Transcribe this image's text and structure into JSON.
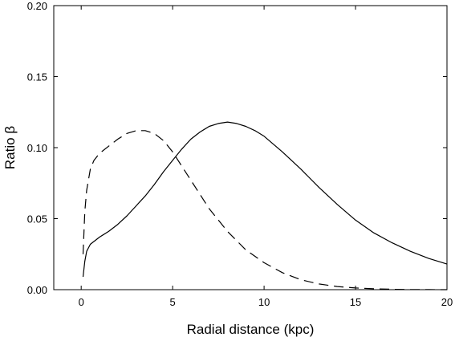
{
  "chart_data": {
    "type": "line",
    "title": "",
    "xlabel": "Radial distance (kpc)",
    "ylabel": "Ratio β",
    "xlim": [
      -1.5,
      20
    ],
    "ylim": [
      0,
      0.2
    ],
    "x_ticks": [
      {
        "value": 0,
        "label": "0"
      },
      {
        "value": 5,
        "label": "5"
      },
      {
        "value": 10,
        "label": "10"
      },
      {
        "value": 15,
        "label": "15"
      },
      {
        "value": 20,
        "label": "20"
      }
    ],
    "y_ticks": [
      {
        "value": 0,
        "label": "0.00"
      },
      {
        "value": 0.05,
        "label": "0.05"
      },
      {
        "value": 0.1,
        "label": "0.10"
      },
      {
        "value": 0.15,
        "label": "0.15"
      },
      {
        "value": 0.2,
        "label": "0.20"
      }
    ],
    "grid": false,
    "series": [
      {
        "style": "solid",
        "color": "#000000",
        "x": [
          0.1,
          0.2,
          0.3,
          0.5,
          0.8,
          1,
          1.5,
          2,
          2.5,
          3,
          3.5,
          4,
          4.5,
          5,
          5.5,
          6,
          6.5,
          7,
          7.5,
          8,
          8.5,
          9,
          9.5,
          10,
          11,
          12,
          13,
          14,
          15,
          16,
          17,
          18,
          19,
          20
        ],
        "y": [
          0.009,
          0.02,
          0.027,
          0.032,
          0.035,
          0.037,
          0.041,
          0.046,
          0.052,
          0.059,
          0.066,
          0.074,
          0.083,
          0.091,
          0.099,
          0.106,
          0.111,
          0.115,
          0.117,
          0.118,
          0.117,
          0.115,
          0.112,
          0.108,
          0.097,
          0.085,
          0.072,
          0.06,
          0.049,
          0.04,
          0.033,
          0.027,
          0.022,
          0.018
        ]
      },
      {
        "style": "dashed",
        "color": "#000000",
        "x": [
          0.1,
          0.2,
          0.3,
          0.5,
          0.7,
          1,
          1.5,
          2,
          2.5,
          3,
          3.5,
          4,
          4.5,
          5,
          5.5,
          6,
          7,
          8,
          9,
          10,
          11,
          12,
          13,
          14,
          15,
          16,
          17,
          18,
          19,
          20
        ],
        "y": [
          0.025,
          0.055,
          0.07,
          0.085,
          0.091,
          0.096,
          0.101,
          0.106,
          0.11,
          0.112,
          0.112,
          0.11,
          0.105,
          0.097,
          0.087,
          0.077,
          0.057,
          0.041,
          0.028,
          0.019,
          0.012,
          0.007,
          0.004,
          0.0022,
          0.0012,
          0.0006,
          0.0003,
          0.0001,
          5e-05,
          2e-05
        ]
      }
    ]
  }
}
